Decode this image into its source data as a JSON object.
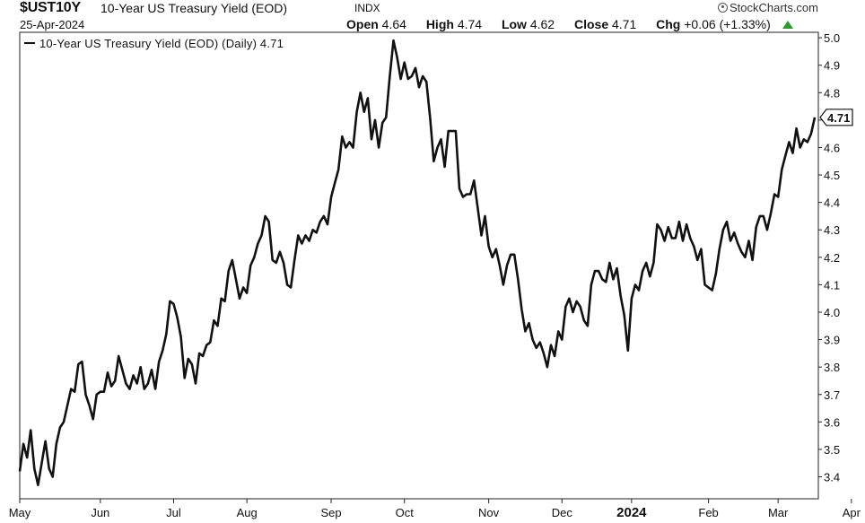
{
  "header": {
    "symbol": "$UST10Y",
    "description": "10-Year US Treasury Yield (EOD)",
    "exchange": "INDX",
    "date": "25-Apr-2024",
    "brand": "StockCharts.com",
    "open_label": "Open",
    "open": "4.64",
    "high_label": "High",
    "high": "4.74",
    "low_label": "Low",
    "low": "4.62",
    "close_label": "Close",
    "close": "4.71",
    "chg_label": "Chg",
    "chg": "+0.06 (+1.33%)",
    "up_color": "#2c9a2c"
  },
  "legend": {
    "label": "10-Year US Treasury Yield (EOD) (Daily) 4.71"
  },
  "chart_data": {
    "type": "line",
    "title": "10-Year US Treasury Yield (EOD)",
    "ylim": [
      3.32,
      5.02
    ],
    "y_ticks": [
      "5.0",
      "4.9",
      "4.8",
      "4.7",
      "4.6",
      "4.5",
      "4.4",
      "4.3",
      "4.2",
      "4.1",
      "4.0",
      "3.9",
      "3.8",
      "3.7",
      "3.6",
      "3.5",
      "3.4"
    ],
    "x_ticks": [
      {
        "label": "May",
        "index": 0
      },
      {
        "label": "Jun",
        "index": 22
      },
      {
        "label": "Jul",
        "index": 42
      },
      {
        "label": "Aug",
        "index": 62
      },
      {
        "label": "Sep",
        "index": 85
      },
      {
        "label": "Oct",
        "index": 105
      },
      {
        "label": "Nov",
        "index": 128
      },
      {
        "label": "Dec",
        "index": 148
      },
      {
        "label": "2024",
        "index": 167,
        "bold": true
      },
      {
        "label": "Feb",
        "index": 188
      },
      {
        "label": "Mar",
        "index": 207
      },
      {
        "label": "Apr",
        "index": 227
      }
    ],
    "last_value_label": "4.71",
    "series": [
      {
        "color": "#111111",
        "values": [
          3.42,
          3.52,
          3.47,
          3.57,
          3.43,
          3.37,
          3.45,
          3.53,
          3.43,
          3.4,
          3.52,
          3.58,
          3.6,
          3.66,
          3.72,
          3.71,
          3.81,
          3.82,
          3.7,
          3.66,
          3.61,
          3.7,
          3.71,
          3.71,
          3.78,
          3.73,
          3.75,
          3.84,
          3.79,
          3.74,
          3.72,
          3.77,
          3.74,
          3.8,
          3.72,
          3.74,
          3.79,
          3.72,
          3.82,
          3.86,
          3.92,
          4.04,
          4.03,
          3.98,
          3.91,
          3.76,
          3.83,
          3.81,
          3.74,
          3.85,
          3.84,
          3.88,
          3.89,
          3.97,
          3.95,
          4.05,
          4.04,
          4.15,
          4.19,
          4.12,
          4.05,
          4.09,
          4.07,
          4.17,
          4.2,
          4.25,
          4.28,
          4.35,
          4.33,
          4.19,
          4.18,
          4.22,
          4.18,
          4.1,
          4.09,
          4.19,
          4.28,
          4.25,
          4.28,
          4.26,
          4.3,
          4.29,
          4.33,
          4.35,
          4.32,
          4.42,
          4.47,
          4.52,
          4.64,
          4.6,
          4.62,
          4.6,
          4.73,
          4.8,
          4.73,
          4.78,
          4.63,
          4.7,
          4.6,
          4.69,
          4.71,
          4.86,
          4.99,
          4.93,
          4.85,
          4.91,
          4.85,
          4.86,
          4.89,
          4.82,
          4.86,
          4.84,
          4.71,
          4.55,
          4.6,
          4.63,
          4.53,
          4.66,
          4.66,
          4.66,
          4.45,
          4.42,
          4.43,
          4.43,
          4.48,
          4.38,
          4.28,
          4.35,
          4.24,
          4.2,
          4.23,
          4.17,
          4.1,
          4.17,
          4.21,
          4.21,
          4.12,
          4.01,
          3.93,
          3.96,
          3.9,
          3.87,
          3.89,
          3.85,
          3.8,
          3.88,
          3.84,
          3.93,
          3.9,
          4.02,
          4.05,
          4.0,
          4.04,
          4.02,
          3.97,
          3.95,
          4.1,
          4.15,
          4.15,
          4.12,
          4.11,
          4.18,
          4.12,
          4.16,
          4.06,
          3.99,
          3.86,
          4.05,
          4.1,
          4.08,
          4.15,
          4.18,
          4.13,
          4.18,
          4.32,
          4.3,
          4.26,
          4.31,
          4.27,
          4.27,
          4.33,
          4.26,
          4.32,
          4.27,
          4.24,
          4.19,
          4.23,
          4.1,
          4.09,
          4.08,
          4.14,
          4.23,
          4.3,
          4.33,
          4.26,
          4.29,
          4.25,
          4.22,
          4.2,
          4.26,
          4.19,
          4.31,
          4.35,
          4.35,
          4.3,
          4.36,
          4.43,
          4.42,
          4.52,
          4.57,
          4.62,
          4.58,
          4.67,
          4.6,
          4.63,
          4.62,
          4.65,
          4.71
        ]
      }
    ],
    "grid": false
  }
}
